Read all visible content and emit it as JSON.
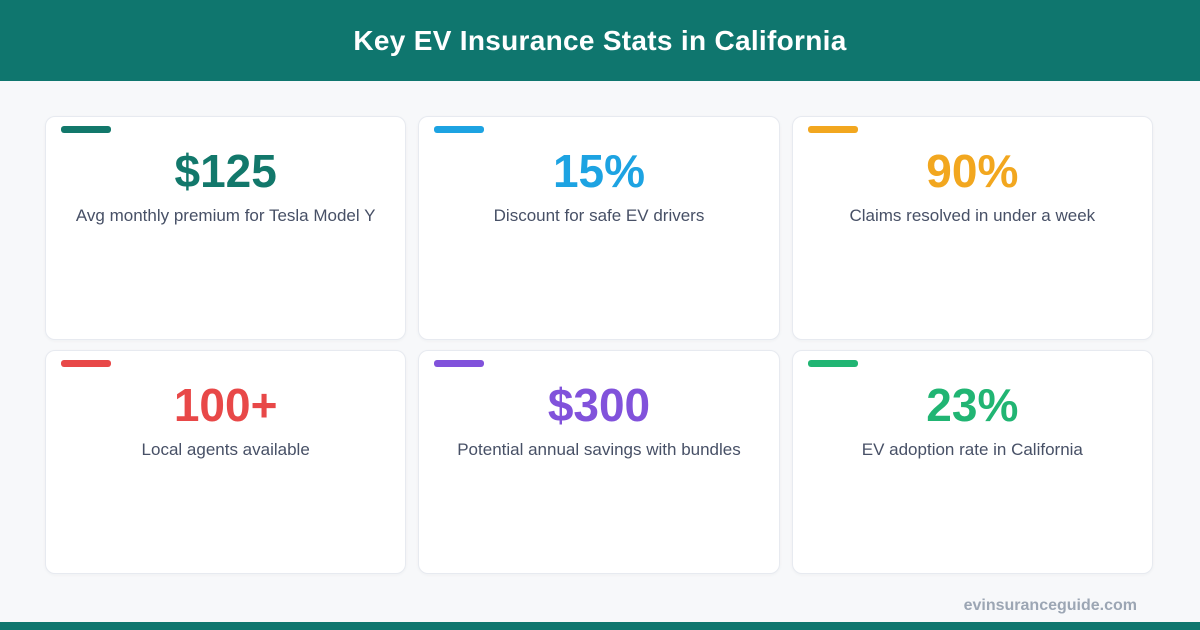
{
  "header": {
    "title": "Key EV Insurance Stats in California",
    "bg_color": "#0f766e",
    "text_color": "#ffffff"
  },
  "page": {
    "bg_color": "#f7f8fa",
    "card_bg_color": "#ffffff",
    "label_color": "#475066",
    "bottom_bar_color": "#0f766e"
  },
  "stats": [
    {
      "value": "$125",
      "label": "Avg monthly premium for Tesla Model Y",
      "color": "#12786b"
    },
    {
      "value": "15%",
      "label": "Discount for safe EV drivers",
      "color": "#1da3e2"
    },
    {
      "value": "90%",
      "label": "Claims resolved in under a week",
      "color": "#f2a71f"
    },
    {
      "value": "100+",
      "label": "Local agents available",
      "color": "#e84848"
    },
    {
      "value": "$300",
      "label": "Potential annual savings with bundles",
      "color": "#8152db"
    },
    {
      "value": "23%",
      "label": "EV adoption rate in California",
      "color": "#21b573"
    }
  ],
  "footer": {
    "domain_text": "evinsuranceguide.com",
    "text_color": "#9ca6b4"
  },
  "chart_data": {
    "type": "table",
    "title": "Key EV Insurance Stats in California",
    "categories": [
      "Avg monthly premium for Tesla Model Y",
      "Discount for safe EV drivers",
      "Claims resolved in under a week",
      "Local agents available",
      "Potential annual savings with bundles",
      "EV adoption rate in California"
    ],
    "values": [
      "$125",
      "15%",
      "90%",
      "100+",
      "$300",
      "23%"
    ],
    "accent_colors": [
      "#12786b",
      "#1da3e2",
      "#f2a71f",
      "#e84848",
      "#8152db",
      "#21b573"
    ],
    "legend_position": "none",
    "grid": false
  }
}
